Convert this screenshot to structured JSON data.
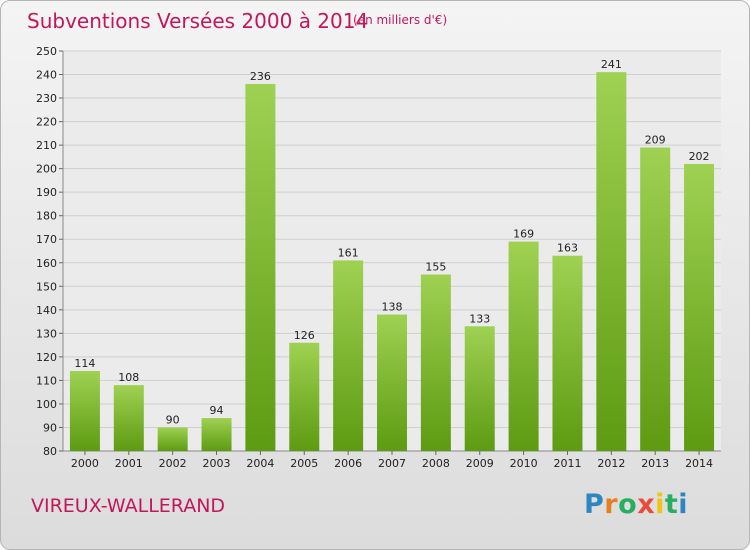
{
  "header": {
    "title": "Subventions Versées 2000 à 2014",
    "unit": "(en milliers d'€)"
  },
  "footer": {
    "place": "VIREUX-WALLERAND",
    "logo_text": "Proxiti"
  },
  "colors": {
    "title": "#c2185b",
    "bar_light": "#9fd152",
    "bar_dark": "#5d9b12",
    "grid": "#cfcfcf"
  },
  "chart_data": {
    "type": "bar",
    "categories": [
      "2000",
      "2001",
      "2002",
      "2003",
      "2004",
      "2005",
      "2006",
      "2007",
      "2008",
      "2009",
      "2010",
      "2011",
      "2012",
      "2013",
      "2014"
    ],
    "values": [
      114,
      108,
      90,
      94,
      236,
      126,
      161,
      138,
      155,
      133,
      169,
      163,
      241,
      209,
      202
    ],
    "title": "Subventions Versées 2000 à 2014",
    "ylim": [
      80,
      250
    ],
    "yticks": [
      80,
      90,
      100,
      110,
      120,
      130,
      140,
      150,
      160,
      170,
      180,
      190,
      200,
      210,
      220,
      230,
      240,
      250
    ],
    "grid": true,
    "data_labels": true
  }
}
